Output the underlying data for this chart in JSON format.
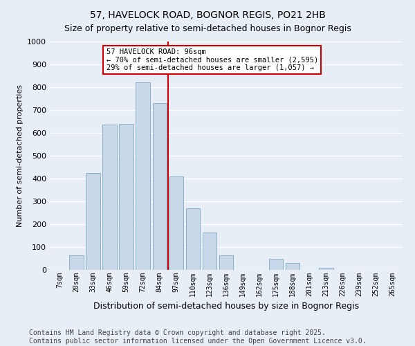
{
  "title": "57, HAVELOCK ROAD, BOGNOR REGIS, PO21 2HB",
  "subtitle": "Size of property relative to semi-detached houses in Bognor Regis",
  "xlabel": "Distribution of semi-detached houses by size in Bognor Regis",
  "ylabel": "Number of semi-detached properties",
  "bar_labels": [
    "7sqm",
    "20sqm",
    "33sqm",
    "46sqm",
    "59sqm",
    "72sqm",
    "84sqm",
    "97sqm",
    "110sqm",
    "123sqm",
    "136sqm",
    "149sqm",
    "162sqm",
    "175sqm",
    "188sqm",
    "201sqm",
    "213sqm",
    "226sqm",
    "239sqm",
    "252sqm",
    "265sqm"
  ],
  "bar_values": [
    0,
    65,
    425,
    635,
    640,
    820,
    730,
    410,
    270,
    165,
    65,
    0,
    0,
    50,
    30,
    0,
    10,
    0,
    0,
    0,
    0
  ],
  "bar_color": "#c8d8e8",
  "bar_edge_color": "#8ab0cc",
  "vline_index": 7,
  "vline_color": "#cc0000",
  "ylim": [
    0,
    1000
  ],
  "yticks": [
    0,
    100,
    200,
    300,
    400,
    500,
    600,
    700,
    800,
    900,
    1000
  ],
  "annotation_title": "57 HAVELOCK ROAD: 96sqm",
  "annotation_line1": "← 70% of semi-detached houses are smaller (2,595)",
  "annotation_line2": "29% of semi-detached houses are larger (1,057) →",
  "annotation_box_color": "#ffffff",
  "annotation_box_edge": "#cc0000",
  "footer_line1": "Contains HM Land Registry data © Crown copyright and database right 2025.",
  "footer_line2": "Contains public sector information licensed under the Open Government Licence v3.0.",
  "bg_color": "#e8eef5",
  "plot_bg_color": "#e8eef5",
  "grid_color": "#ffffff",
  "title_fontsize": 10,
  "subtitle_fontsize": 9,
  "ylabel_fontsize": 8,
  "xlabel_fontsize": 9,
  "footer_fontsize": 7,
  "ann_fontsize": 7.5,
  "tick_fontsize": 7
}
